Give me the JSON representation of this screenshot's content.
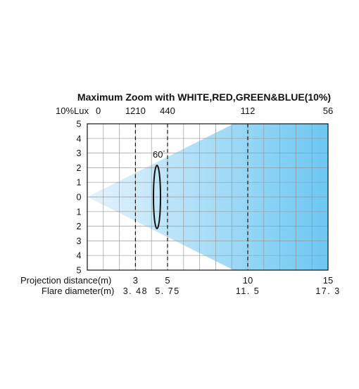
{
  "title": "Maximum Zoom with WHITE,RED,GREEN&BLUE(10%)",
  "lux_row": {
    "label": "10%Lux",
    "values": [
      "0",
      "1210",
      "440",
      "112",
      "56"
    ]
  },
  "y_ticks": [
    "5",
    "4",
    "3",
    "2",
    "1",
    "0",
    "1",
    "2",
    "3",
    "4",
    "5"
  ],
  "beam_angle": {
    "value": "60",
    "unit": "°"
  },
  "projection_distance": {
    "label": "Projection distance(m)",
    "values": [
      "3",
      "5",
      "10",
      "15"
    ]
  },
  "flare_diameter": {
    "label": "Flare diameter(m)",
    "values": [
      "3. 48",
      "5. 75",
      "11. 5",
      "17. 3"
    ]
  },
  "chart_data": {
    "type": "beam-diagram",
    "x_range": [
      0,
      15
    ],
    "y_range": [
      -5,
      5
    ],
    "grid": true,
    "beam_angle_deg": 60,
    "markers": [
      {
        "distance_m": 3,
        "flare_diameter_m": 3.48,
        "lux": 1210
      },
      {
        "distance_m": 5,
        "flare_diameter_m": 5.75,
        "lux": 440
      },
      {
        "distance_m": 10,
        "flare_diameter_m": 11.5,
        "lux": 112
      },
      {
        "distance_m": 15,
        "flare_diameter_m": 17.3,
        "lux": 56
      }
    ],
    "colors": {
      "beam_light": "#e6f3fc",
      "beam_dark": "#6cc7f2",
      "grid": "#9a9a9a",
      "axis": "#111111"
    }
  }
}
